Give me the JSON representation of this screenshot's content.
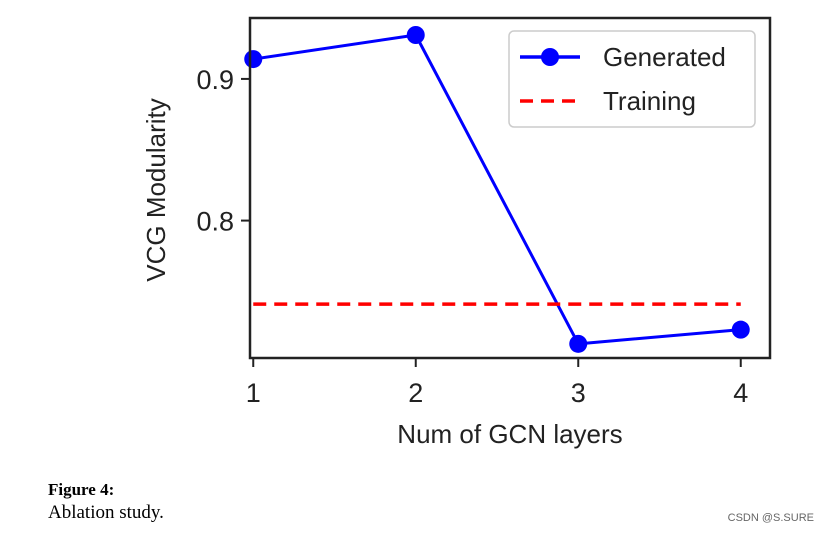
{
  "chart_data": {
    "type": "line",
    "x": [
      1,
      2,
      3,
      4
    ],
    "series": [
      {
        "name": "Generated",
        "values": [
          0.914,
          0.931,
          0.713,
          0.723
        ],
        "color": "#0000ff",
        "style": "solid",
        "marker": "circle"
      },
      {
        "name": "Training",
        "values": [
          0.741,
          0.741,
          0.741,
          0.741
        ],
        "color": "#ff0000",
        "style": "dashed"
      }
    ],
    "xlabel": "Num of GCN layers",
    "ylabel": "VCG Modularity",
    "xticks": [
      "1",
      "2",
      "3",
      "4"
    ],
    "yticks": [
      0.8,
      0.9
    ],
    "ytick_labels": [
      "0.8",
      "0.9"
    ],
    "xlim": [
      0.98,
      4.18
    ],
    "ylim": [
      0.703,
      0.943
    ],
    "grid": false,
    "legend_position": "top-right"
  },
  "caption": {
    "label": "Figure 4:",
    "text": "Ablation study."
  },
  "watermark": "CSDN @S.SURE"
}
